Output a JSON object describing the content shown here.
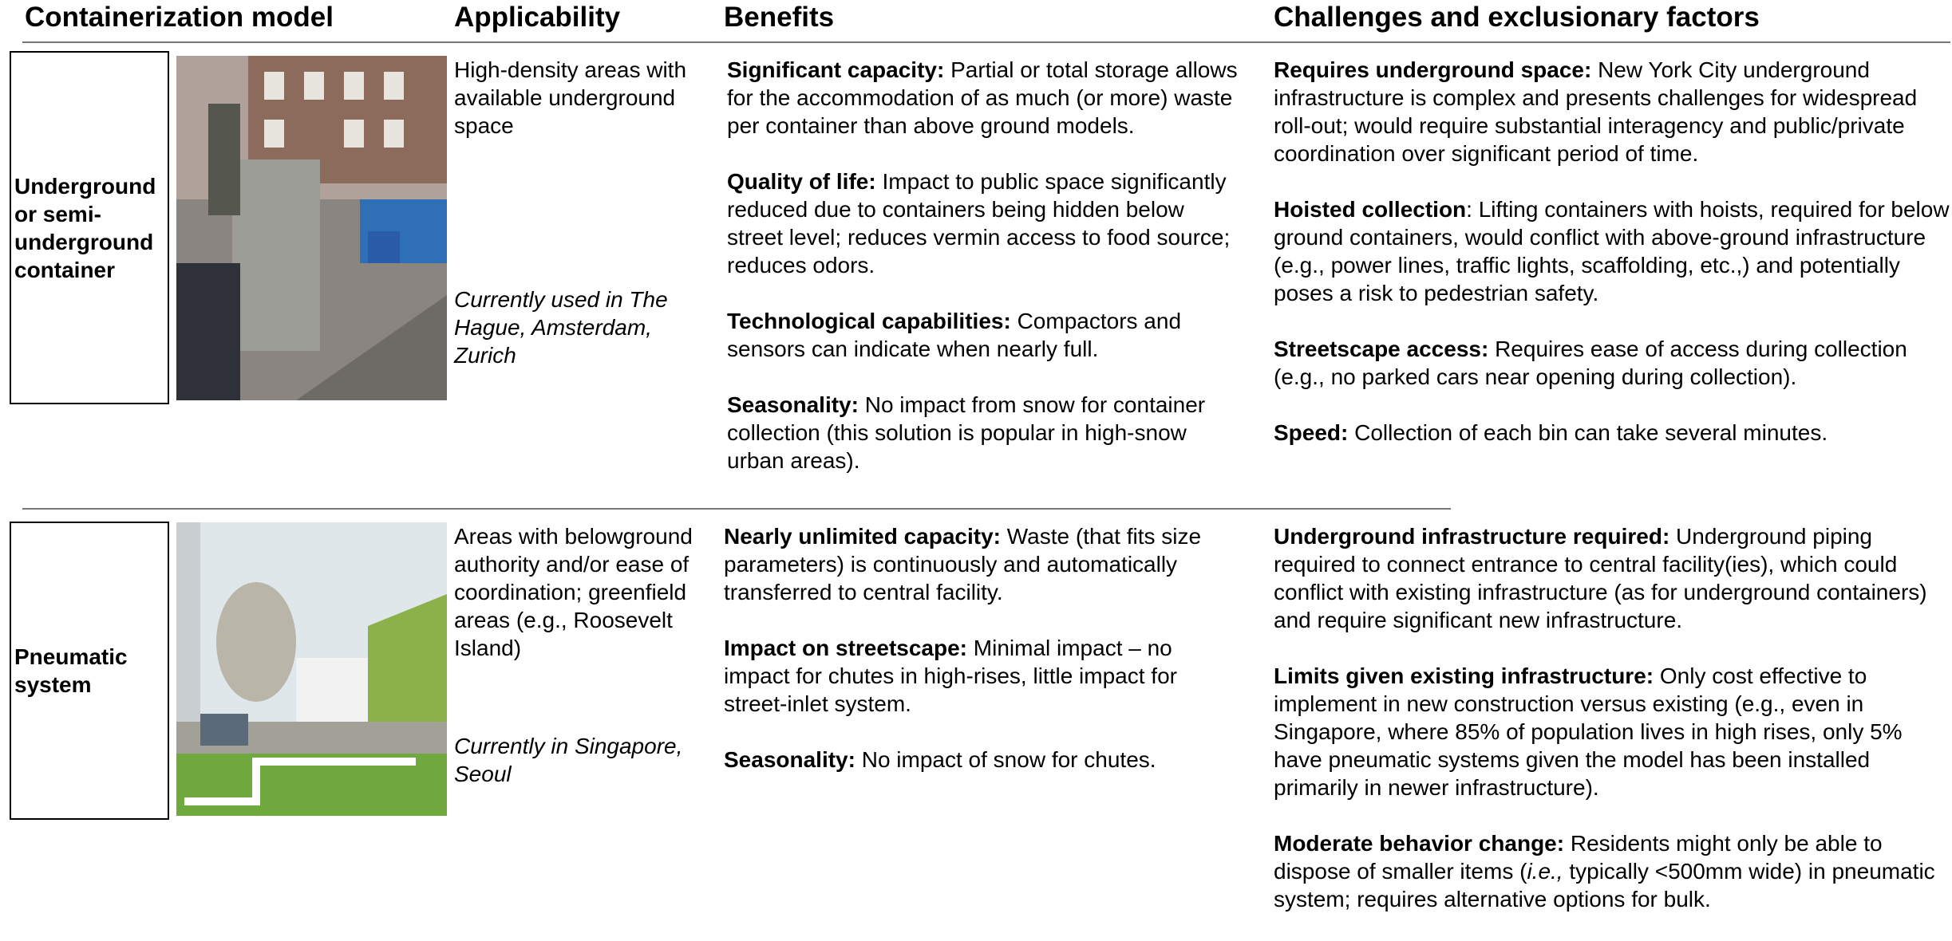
{
  "header": {
    "columns": [
      "Containerization model",
      "Applicability",
      "Benefits",
      "Challenges and exclusionary factors"
    ]
  },
  "rows": [
    {
      "model": "Underground or semi-underground container",
      "applicability": "High-density areas with available underground space",
      "current_use": "Currently used in The Hague, Amsterdam, Zurich",
      "benefits": [
        {
          "title": "Significant capacity:",
          "text": " Partial or total storage allows for the accommodation of as much (or more) waste per container than above ground models."
        },
        {
          "title": "Quality of life:",
          "text": " Impact to public space significantly reduced due to containers being hidden below street level; reduces vermin access to food source; reduces odors."
        },
        {
          "title": "Technological capabilities:",
          "text": " Compactors and sensors can indicate when nearly full."
        },
        {
          "title": "Seasonality:",
          "text": " No impact from snow for container collection (this solution is popular in high-snow urban areas)."
        }
      ],
      "challenges": [
        {
          "title": "Requires underground space:",
          "text": " New York City underground infrastructure is complex and presents challenges for widespread roll-out; would require substantial interagency and public/private coordination over significant period of time."
        },
        {
          "title": "Hoisted collection",
          "text": ": Lifting containers with hoists, required for below ground containers, would conflict with above-ground infrastructure (e.g., power lines, traffic lights, scaffolding, etc.,) and potentially poses a risk to pedestrian safety."
        },
        {
          "title": "Streetscape access:",
          "text": " Requires ease of access during collection (e.g., no parked cars near opening during collection)."
        },
        {
          "title": "Speed:",
          "text": " Collection of each bin can take several minutes."
        }
      ]
    },
    {
      "model": "Pneumatic system",
      "applicability": "Areas with belowground authority and/or ease of coordination; greenfield areas (e.g., Roosevelt Island)",
      "current_use": "Currently in Singapore, Seoul",
      "benefits": [
        {
          "title": "Nearly unlimited capacity:",
          "text": " Waste (that fits size parameters) is continuously and automatically transferred to central facility."
        },
        {
          "title": "Impact on streetscape:",
          "text": " Minimal impact – no impact for chutes in high-rises, little impact for street-inlet system."
        },
        {
          "title": "Seasonality:",
          "text": " No impact of snow for chutes."
        }
      ],
      "challenges": [
        {
          "title": "Underground infrastructure required:",
          "text": " Underground piping required to connect entrance to central facility(ies), which could conflict with existing infrastructure (as for underground containers) and require significant new infrastructure."
        },
        {
          "title": "Limits given existing infrastructure:",
          "text": " Only cost effective to implement in new construction versus existing (e.g., even in Singapore, where 85% of population lives in high rises, only 5% have pneumatic systems given the model has been installed primarily in newer infrastructure)."
        },
        {
          "title": "Moderate behavior change:",
          "text": [
            " Residents might only be able to dispose of smaller items (",
            "i.e.,",
            " typically <500mm wide) in pneumatic system; requires alternative options for bulk."
          ]
        }
      ]
    }
  ]
}
